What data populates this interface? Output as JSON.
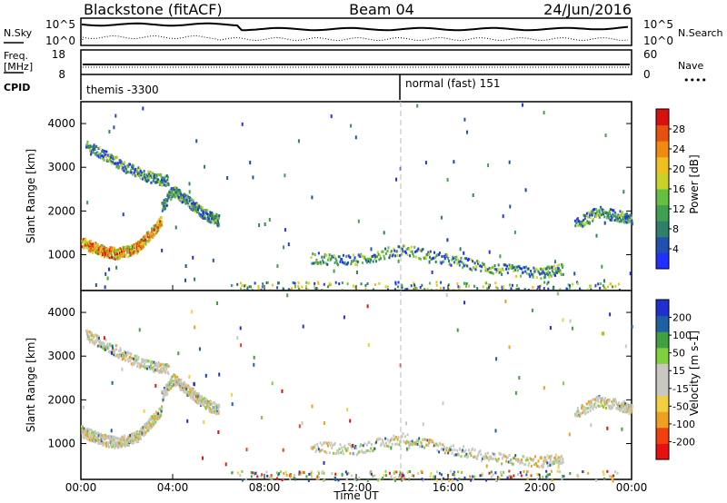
{
  "header": {
    "station": "Blackstone (fitACF)",
    "beam": "Beam 04",
    "date": "24/Jun/2016"
  },
  "noise_panel": {
    "left_label": "N.Sky",
    "right_label": "N.Search",
    "tick_top": "10^5",
    "tick_bottom": "10^0"
  },
  "freq_panel": {
    "left_label": "Freq.",
    "left_unit": "[MHz]",
    "left_ticks": [
      "18",
      "8"
    ],
    "right_label": "Nave",
    "right_ticks": [
      "60",
      "0"
    ],
    "cpid_label": "CPID",
    "cpid_segments": [
      {
        "label": "themis -3300",
        "start_hour": 0
      },
      {
        "label": "normal (fast) 151",
        "start_hour": 14.0
      }
    ]
  },
  "chart_data": [
    {
      "type": "heatmap",
      "name": "power",
      "ylabel": "Slant Range [km]",
      "yticks": [
        1000,
        2000,
        3000,
        4000
      ],
      "ylim": [
        180,
        4500
      ],
      "xlim": [
        0,
        24
      ],
      "colorbar": {
        "label": "Power [dB]",
        "ticks": [
          "4",
          "8",
          "12",
          "16",
          "20",
          "24",
          "28"
        ],
        "colors": [
          "#1f30ff",
          "#2050b0",
          "#2f7f6a",
          "#3fa050",
          "#64c040",
          "#c8d22a",
          "#f0c020",
          "#f08a10",
          "#e85010",
          "#d81010"
        ]
      },
      "features": [
        {
          "x": [
            0.0,
            0.5,
            1.0,
            1.5,
            2.0,
            2.5,
            3.0,
            3.5
          ],
          "y": [
            1300,
            1200,
            1100,
            1050,
            1100,
            1200,
            1500,
            1800
          ]
        },
        {
          "x": [
            3.5,
            4.0,
            4.5,
            5.0,
            5.5,
            6.0
          ],
          "y": [
            2100,
            2500,
            2300,
            2100,
            1900,
            1800
          ]
        },
        {
          "x": [
            0.2,
            1.0,
            2.0,
            3.0,
            3.8
          ],
          "y": [
            3500,
            3300,
            3000,
            2800,
            2700
          ]
        },
        {
          "x": [
            10.0,
            12.0,
            14.0,
            16.0,
            18.0,
            20.0,
            21.0
          ],
          "y": [
            950,
            900,
            1150,
            900,
            700,
            600,
            700
          ]
        },
        {
          "x": [
            21.5,
            22.5,
            23.5,
            24.0
          ],
          "y": [
            1700,
            2000,
            1900,
            1800
          ]
        }
      ]
    },
    {
      "type": "heatmap",
      "name": "velocity",
      "ylabel": "Slant Range [km]",
      "yticks": [
        1000,
        2000,
        3000,
        4000
      ],
      "ylim": [
        180,
        4500
      ],
      "xlim": [
        0,
        24
      ],
      "xticks": [
        "00:00",
        "04:00",
        "08:00",
        "12:00",
        "16:00",
        "20:00",
        "00:00"
      ],
      "xlabel": "Time UT",
      "colorbar": {
        "label": "Velocity [m s-1]",
        "ticks": [
          "-200",
          "-100",
          "-50",
          "-15",
          "15",
          "50",
          "100",
          "200"
        ],
        "colors": [
          "#e81010",
          "#f04010",
          "#f0a020",
          "#f0d040",
          "#c8c8c0",
          "#c8c8c0",
          "#80d040",
          "#40a040",
          "#2060a0",
          "#2030d0"
        ]
      }
    }
  ]
}
